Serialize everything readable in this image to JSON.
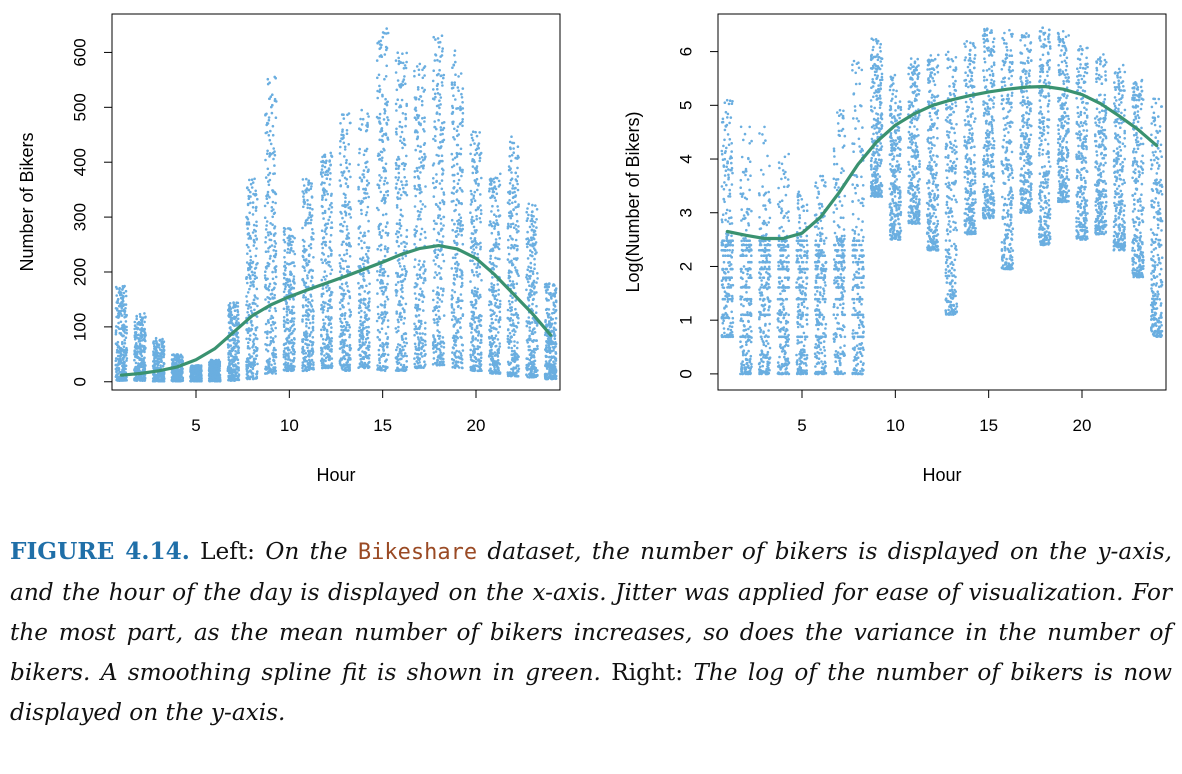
{
  "colors": {
    "points": "#6aaee0",
    "spline": "#3a9270",
    "figure_label": "#1f6fa8",
    "code": "#9a4a24"
  },
  "caption": {
    "label": "FIGURE 4.14.",
    "left_word": "Left:",
    "part1": "On the",
    "dataset": "Bikeshare",
    "part2": "dataset, the number of bikers is displayed on the y-axis, and the hour of the day is displayed on the x-axis. Jitter was applied for ease of visualization. For the most part, as the mean number of bikers increases, so does the variance in the number of bikers. A smoothing spline fit is shown in green.",
    "right_word": "Right:",
    "part3": "The log of the number of bikers is now displayed on the y-axis."
  },
  "chart_data": [
    {
      "type": "scatter",
      "xlabel": "Hour",
      "ylabel": "Number of Bikers",
      "xlim": [
        0.5,
        24.5
      ],
      "ylim": [
        -15,
        670
      ],
      "xticks": [
        5,
        10,
        15,
        20
      ],
      "yticks": [
        0,
        100,
        200,
        300,
        400,
        500,
        600
      ],
      "grid": false,
      "points_by_hour": [
        {
          "hour": 1,
          "low": 2,
          "high": 175
        },
        {
          "hour": 2,
          "low": 2,
          "high": 125
        },
        {
          "hour": 3,
          "low": 1,
          "high": 80
        },
        {
          "hour": 4,
          "low": 1,
          "high": 50
        },
        {
          "hour": 5,
          "low": 1,
          "high": 30
        },
        {
          "hour": 6,
          "low": 1,
          "high": 40
        },
        {
          "hour": 7,
          "low": 2,
          "high": 145
        },
        {
          "hour": 8,
          "low": 5,
          "high": 370
        },
        {
          "hour": 9,
          "low": 15,
          "high": 565
        },
        {
          "hour": 10,
          "low": 20,
          "high": 280
        },
        {
          "hour": 11,
          "low": 20,
          "high": 370
        },
        {
          "hour": 12,
          "low": 25,
          "high": 420
        },
        {
          "hour": 13,
          "low": 20,
          "high": 495
        },
        {
          "hour": 14,
          "low": 25,
          "high": 495
        },
        {
          "hour": 15,
          "low": 20,
          "high": 650
        },
        {
          "hour": 16,
          "low": 20,
          "high": 600
        },
        {
          "hour": 17,
          "low": 25,
          "high": 580
        },
        {
          "hour": 18,
          "low": 30,
          "high": 640
        },
        {
          "hour": 19,
          "low": 25,
          "high": 620
        },
        {
          "hour": 20,
          "low": 20,
          "high": 460
        },
        {
          "hour": 21,
          "low": 15,
          "high": 385
        },
        {
          "hour": 22,
          "low": 10,
          "high": 455
        },
        {
          "hour": 23,
          "low": 8,
          "high": 325
        },
        {
          "hour": 24,
          "low": 5,
          "high": 180
        }
      ],
      "spline": {
        "x": [
          1,
          2,
          3,
          4,
          5,
          6,
          7,
          8,
          9,
          10,
          11,
          12,
          13,
          14,
          15,
          16,
          17,
          18,
          19,
          20,
          21,
          22,
          23,
          24
        ],
        "y": [
          12,
          15,
          20,
          27,
          40,
          60,
          90,
          120,
          140,
          155,
          168,
          180,
          192,
          205,
          218,
          232,
          243,
          248,
          242,
          225,
          195,
          160,
          125,
          85
        ]
      }
    },
    {
      "type": "scatter",
      "xlabel": "Hour",
      "ylabel": "Log(Number of Bikers)",
      "xlim": [
        0.5,
        24.5
      ],
      "ylim": [
        -0.3,
        6.7
      ],
      "xticks": [
        5,
        10,
        15,
        20
      ],
      "yticks": [
        0,
        1,
        2,
        3,
        4,
        5,
        6
      ],
      "grid": false,
      "points_by_hour": [
        {
          "hour": 1,
          "low": 0.69,
          "high": 5.15
        },
        {
          "hour": 2,
          "low": 0,
          "high": 4.8
        },
        {
          "hour": 3,
          "low": 0,
          "high": 4.6
        },
        {
          "hour": 4,
          "low": 0,
          "high": 4.1
        },
        {
          "hour": 5,
          "low": 0,
          "high": 3.4
        },
        {
          "hour": 6,
          "low": 0,
          "high": 3.75
        },
        {
          "hour": 7,
          "low": 0,
          "high": 4.95
        },
        {
          "hour": 8,
          "low": 0,
          "high": 5.9
        },
        {
          "hour": 9,
          "low": 3.3,
          "high": 6.3
        },
        {
          "hour": 10,
          "low": 2.5,
          "high": 5.6
        },
        {
          "hour": 11,
          "low": 2.8,
          "high": 5.9
        },
        {
          "hour": 12,
          "low": 2.3,
          "high": 6.0
        },
        {
          "hour": 13,
          "low": 1.1,
          "high": 6.2
        },
        {
          "hour": 14,
          "low": 2.6,
          "high": 6.2
        },
        {
          "hour": 15,
          "low": 2.9,
          "high": 6.45
        },
        {
          "hour": 16,
          "low": 1.95,
          "high": 6.4
        },
        {
          "hour": 17,
          "low": 3.0,
          "high": 6.35
        },
        {
          "hour": 18,
          "low": 2.4,
          "high": 6.45
        },
        {
          "hour": 19,
          "low": 3.2,
          "high": 6.43
        },
        {
          "hour": 20,
          "low": 2.5,
          "high": 6.1
        },
        {
          "hour": 21,
          "low": 2.6,
          "high": 5.95
        },
        {
          "hour": 22,
          "low": 2.3,
          "high": 5.8
        },
        {
          "hour": 23,
          "low": 1.8,
          "high": 5.5
        },
        {
          "hour": 24,
          "low": 0.69,
          "high": 5.2
        }
      ],
      "spline": {
        "x": [
          1,
          2,
          3,
          4,
          5,
          6,
          7,
          8,
          9,
          10,
          11,
          12,
          13,
          14,
          15,
          16,
          17,
          18,
          19,
          20,
          21,
          22,
          23,
          24
        ],
        "y": [
          2.65,
          2.58,
          2.52,
          2.52,
          2.62,
          2.92,
          3.38,
          3.9,
          4.32,
          4.63,
          4.84,
          5.0,
          5.1,
          5.18,
          5.25,
          5.3,
          5.34,
          5.35,
          5.3,
          5.2,
          5.03,
          4.8,
          4.55,
          4.25
        ]
      }
    }
  ]
}
